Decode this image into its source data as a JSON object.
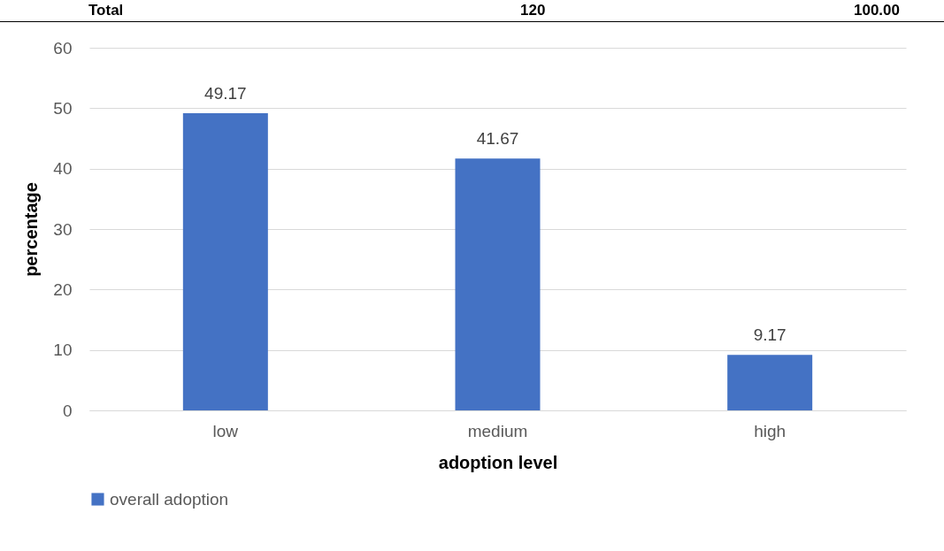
{
  "chart_data": {
    "type": "bar",
    "xlabel": "adoption level",
    "ylabel": "percentage",
    "categories": [
      "low",
      "medium",
      "high"
    ],
    "series": [
      {
        "name": "overall adoption",
        "color": "#4472c4",
        "values": [
          49.17,
          41.67,
          9.17
        ]
      }
    ],
    "ylim": [
      0,
      60
    ],
    "yticks": [
      0,
      10,
      20,
      30,
      40,
      50,
      60
    ],
    "grid": "y",
    "legend": "bottom",
    "data_labels": true,
    "annotations": [
      "Total",
      "120",
      "100.00"
    ]
  }
}
